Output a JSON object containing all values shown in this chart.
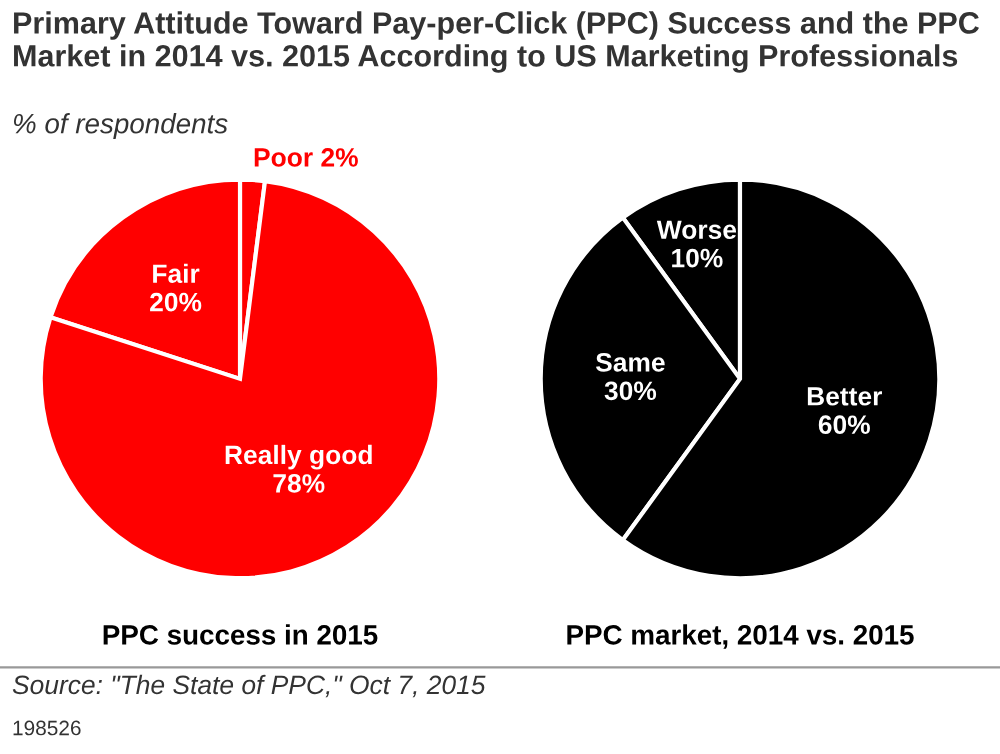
{
  "chart_data": [
    {
      "type": "pie",
      "title": "Primary Attitude Toward Pay-per-Click (PPC) Success and the PPC Market in 2014 vs. 2015 According to US Marketing Professionals",
      "subtitle": "% of respondents",
      "xlabel": "PPC success in 2015",
      "categories": [
        "Poor",
        "Fair",
        "Really good"
      ],
      "values": [
        2,
        20,
        78
      ],
      "value_labels": [
        "2%",
        "20%",
        "78%"
      ],
      "colors": [
        "#ff0000",
        "#ff0000",
        "#ff0000"
      ],
      "annotations": [
        "Source: \"The State of PPC,\" Oct 7, 2015",
        "198526"
      ]
    },
    {
      "type": "pie",
      "xlabel": "PPC market, 2014 vs. 2015",
      "categories": [
        "Worse",
        "Same",
        "Better"
      ],
      "values": [
        10,
        30,
        60
      ],
      "value_labels": [
        "10%",
        "30%",
        "60%"
      ],
      "colors": [
        "#000000",
        "#000000",
        "#000000"
      ]
    }
  ]
}
